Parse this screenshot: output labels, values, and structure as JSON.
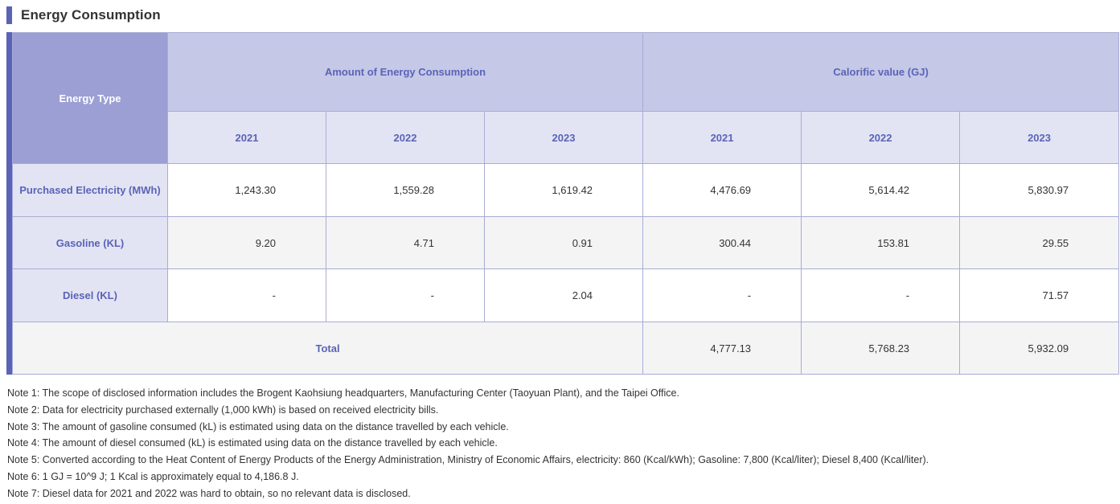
{
  "title": "Energy Consumption",
  "table": {
    "energy_type_header": "Energy Type",
    "group_amount": "Amount of Energy Consumption",
    "group_calorific": "Calorific value (GJ)",
    "years": [
      "2021",
      "2022",
      "2023"
    ],
    "rows": [
      {
        "label": "Purchased Electricity (MWh)",
        "amount": [
          "1,243.30",
          "1,559.28",
          "1,619.42"
        ],
        "calorific": [
          "4,476.69",
          "5,614.42",
          "5,830.97"
        ]
      },
      {
        "label": "Gasoline (KL)",
        "amount": [
          "9.20",
          "4.71",
          "0.91"
        ],
        "calorific": [
          "300.44",
          "153.81",
          "29.55"
        ]
      },
      {
        "label": "Diesel (KL)",
        "amount": [
          "-",
          "-",
          "2.04"
        ],
        "calorific": [
          "-",
          "-",
          "71.57"
        ]
      }
    ],
    "total": {
      "label": "Total",
      "calorific": [
        "4,777.13",
        "5,768.23",
        "5,932.09"
      ]
    }
  },
  "notes": [
    "Note 1: The scope of disclosed information includes the Brogent Kaohsiung headquarters, Manufacturing Center (Taoyuan Plant), and the Taipei Office.",
    "Note 2: Data for electricity purchased externally (1,000 kWh) is based on received electricity bills.",
    "Note 3: The amount of gasoline consumed (kL) is estimated using data on the distance travelled by each vehicle.",
    "Note 4: The amount of diesel consumed (kL) is estimated using data on the distance travelled by each vehicle.",
    "Note 5: Converted according to the Heat Content of Energy Products of the Energy Administration, Ministry of Economic Affairs, electricity: 860 (Kcal/kWh); Gasoline: 7,800 (Kcal/liter); Diesel 8,400 (Kcal/liter).",
    "Note 6: 1 GJ = 10^9 J; 1 Kcal is approximately equal to 4,186.8 J.",
    "Note 7: Diesel data for 2021 and 2022 was hard to obtain, so no relevant data is disclosed."
  ]
}
